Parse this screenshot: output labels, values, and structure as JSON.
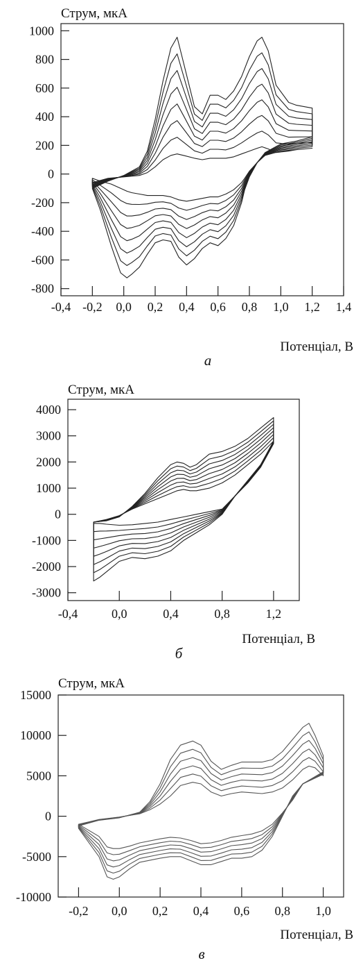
{
  "colors": {
    "line": "#222222",
    "line_c": "#555555",
    "frame": "#222222"
  },
  "chart_data": [
    {
      "type": "line",
      "panel_label": "а",
      "ylabel": "Струм, мкА",
      "xlabel": "Потенціал, В",
      "xlim": [
        -0.4,
        1.4
      ],
      "ylim": [
        -850,
        1050
      ],
      "xticks": [
        -0.4,
        -0.2,
        0.0,
        0.2,
        0.4,
        0.6,
        0.8,
        1.0,
        1.2,
        1.4
      ],
      "xtick_labels": [
        "-0,4",
        "-0,2",
        "0,0",
        "0,2",
        "0,4",
        "0,6",
        "0,8",
        "1,0",
        "1,2",
        "1,4"
      ],
      "yticks": [
        -800,
        -600,
        -400,
        -200,
        0,
        200,
        400,
        600,
        800,
        1000
      ],
      "ytick_labels": [
        "-800",
        "-600",
        "-400",
        "-200",
        "0",
        "200",
        "400",
        "600",
        "800",
        "1000"
      ],
      "grid": false,
      "curve_count": 8,
      "anodic_peaks": {
        "x": [
          0.34,
          0.88
        ],
        "y_top": [
          955,
          955
        ]
      },
      "cathodic_peaks": {
        "x": [
          0.02,
          0.4
        ],
        "y_bottom": [
          -725,
          -635
        ]
      },
      "x": [
        -0.2,
        -0.1,
        0.0,
        0.1,
        0.15,
        0.2,
        0.25,
        0.3,
        0.34,
        0.38,
        0.45,
        0.5,
        0.55,
        0.6,
        0.65,
        0.7,
        0.75,
        0.8,
        0.85,
        0.88,
        0.92,
        0.97,
        1.05,
        1.1,
        1.2
      ],
      "anodic_max": [
        -100,
        -50,
        -10,
        50,
        160,
        380,
        650,
        880,
        955,
        780,
        470,
        420,
        550,
        550,
        520,
        580,
        680,
        820,
        930,
        955,
        860,
        620,
        500,
        480,
        460
      ],
      "anodic_min": [
        -60,
        -30,
        -20,
        -10,
        10,
        50,
        100,
        130,
        140,
        130,
        110,
        100,
        110,
        110,
        110,
        120,
        140,
        160,
        180,
        190,
        175,
        150,
        160,
        170,
        180
      ],
      "cathodic_x": [
        1.2,
        1.1,
        1.0,
        0.9,
        0.85,
        0.8,
        0.77,
        0.75,
        0.7,
        0.65,
        0.6,
        0.55,
        0.5,
        0.45,
        0.4,
        0.35,
        0.3,
        0.25,
        0.2,
        0.15,
        0.1,
        0.05,
        0.02,
        -0.02,
        -0.08,
        -0.15,
        -0.2
      ],
      "cathodic_max": [
        260,
        230,
        210,
        150,
        80,
        -20,
        -110,
        -200,
        -360,
        -450,
        -500,
        -480,
        -520,
        -590,
        -635,
        -580,
        -470,
        -460,
        -480,
        -560,
        -650,
        -700,
        -725,
        -690,
        -500,
        -250,
        -100
      ],
      "cathodic_min": [
        180,
        170,
        160,
        130,
        80,
        20,
        -30,
        -60,
        -110,
        -140,
        -160,
        -160,
        -170,
        -180,
        -190,
        -180,
        -160,
        -150,
        -150,
        -150,
        -140,
        -130,
        -120,
        -100,
        -70,
        -50,
        -30
      ]
    },
    {
      "type": "line",
      "panel_label": "б",
      "ylabel": "Струм, мкА",
      "xlabel": "Потенціал, В",
      "xlim": [
        -0.4,
        1.4
      ],
      "ylim": [
        -3300,
        4400
      ],
      "xticks": [
        -0.4,
        0.0,
        0.4,
        0.8,
        1.2
      ],
      "xtick_labels": [
        "-0,4",
        "0,0",
        "0,4",
        "0,8",
        "1,2"
      ],
      "yticks": [
        -3000,
        -2000,
        -1000,
        0,
        1000,
        2000,
        3000,
        4000
      ],
      "ytick_labels": [
        "-3000",
        "-2000",
        "-1000",
        "0",
        "1000",
        "2000",
        "3000",
        "4000"
      ],
      "grid": false,
      "curve_count": 8,
      "x": [
        -0.2,
        -0.1,
        0.0,
        0.1,
        0.2,
        0.3,
        0.4,
        0.45,
        0.5,
        0.55,
        0.6,
        0.65,
        0.7,
        0.8,
        0.9,
        1.0,
        1.1,
        1.2
      ],
      "anodic_max": [
        -300,
        -250,
        -100,
        300,
        800,
        1400,
        1900,
        2000,
        1950,
        1800,
        1900,
        2100,
        2300,
        2400,
        2600,
        2900,
        3300,
        3700
      ],
      "anodic_min": [
        -300,
        -200,
        -50,
        200,
        400,
        600,
        800,
        900,
        950,
        900,
        900,
        950,
        1000,
        1200,
        1500,
        1900,
        2300,
        2800
      ],
      "cathodic_x": [
        1.2,
        1.1,
        1.0,
        0.9,
        0.8,
        0.7,
        0.6,
        0.5,
        0.4,
        0.3,
        0.2,
        0.1,
        0.0,
        -0.1,
        -0.15,
        -0.2
      ],
      "cathodic_max": [
        2800,
        1900,
        1300,
        700,
        0,
        -400,
        -700,
        -1000,
        -1400,
        -1600,
        -1700,
        -1650,
        -1800,
        -2200,
        -2400,
        -2550
      ],
      "cathodic_min": [
        2700,
        1800,
        1200,
        700,
        200,
        100,
        0,
        -100,
        -200,
        -300,
        -350,
        -400,
        -420,
        -380,
        -350,
        -350
      ]
    },
    {
      "type": "line",
      "panel_label": "в",
      "ylabel": "Струм, мкА",
      "xlabel": "Потенціал, В",
      "xlim": [
        -0.3,
        1.1
      ],
      "ylim": [
        -10000,
        15000
      ],
      "xticks": [
        -0.2,
        0.0,
        0.2,
        0.4,
        0.6,
        0.8,
        1.0
      ],
      "xtick_labels": [
        "-0,2",
        "0,0",
        "0,2",
        "0,4",
        "0,6",
        "0,8",
        "1,0"
      ],
      "yticks": [
        -10000,
        -5000,
        0,
        5000,
        10000,
        15000
      ],
      "ytick_labels": [
        "-10000",
        "-5000",
        "0",
        "5000",
        "10000",
        "15000"
      ],
      "grid": false,
      "curve_count": 6,
      "x": [
        -0.2,
        -0.1,
        0.0,
        0.1,
        0.15,
        0.2,
        0.25,
        0.3,
        0.36,
        0.4,
        0.45,
        0.5,
        0.55,
        0.6,
        0.65,
        0.7,
        0.75,
        0.8,
        0.85,
        0.9,
        0.93,
        0.96,
        1.0
      ],
      "anodic_max": [
        -1200,
        -500,
        -200,
        500,
        1800,
        4000,
        7000,
        8800,
        9300,
        8800,
        6800,
        5800,
        6300,
        6700,
        6700,
        6700,
        7000,
        8000,
        9500,
        11000,
        11500,
        10000,
        7500
      ],
      "anodic_min": [
        -1000,
        -400,
        -100,
        300,
        800,
        1500,
        2500,
        3800,
        4200,
        4000,
        3000,
        2500,
        2800,
        3000,
        2900,
        2800,
        3000,
        3500,
        4500,
        5800,
        6200,
        6000,
        5000
      ],
      "cathodic_x": [
        1.0,
        0.9,
        0.85,
        0.8,
        0.75,
        0.7,
        0.65,
        0.6,
        0.55,
        0.5,
        0.45,
        0.4,
        0.35,
        0.3,
        0.25,
        0.2,
        0.1,
        0.05,
        0.0,
        -0.03,
        -0.06,
        -0.1,
        -0.2
      ],
      "cathodic_max": [
        5500,
        4000,
        2500,
        0,
        -2500,
        -4200,
        -5000,
        -5200,
        -5200,
        -5600,
        -6000,
        -6000,
        -5500,
        -5000,
        -5000,
        -5200,
        -5700,
        -6500,
        -7500,
        -7800,
        -7500,
        -5000,
        -1500
      ],
      "cathodic_min": [
        5200,
        4000,
        2000,
        400,
        -1000,
        -1800,
        -2200,
        -2400,
        -2600,
        -3000,
        -3300,
        -3400,
        -3000,
        -2700,
        -2600,
        -2800,
        -3300,
        -3700,
        -4000,
        -4000,
        -3800,
        -2500,
        -1000
      ]
    }
  ]
}
